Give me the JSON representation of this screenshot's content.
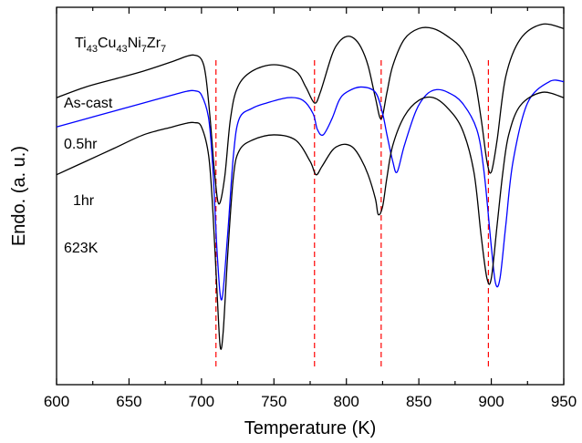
{
  "chart_data": {
    "type": "line",
    "xlabel": "Temperature (K)",
    "ylabel": "Endo. (a. u.)",
    "xlim": [
      600,
      950
    ],
    "xticks": [
      "600",
      "650",
      "700",
      "750",
      "800",
      "850",
      "900",
      "950"
    ],
    "ylim": [
      -3.4,
      3.7
    ],
    "grid": false,
    "composition": {
      "base": [
        "Ti",
        "Cu",
        "Ni",
        "Zr"
      ],
      "subscripts": [
        "43",
        "43",
        "7",
        "7"
      ]
    },
    "annotations": [
      "As-cast",
      "0.5hr",
      "1hr",
      "623K"
    ],
    "reference_lines_x": [
      710,
      778,
      824,
      898
    ],
    "series": [
      {
        "color": "#000000",
        "x": [
          600,
          620,
          640,
          660,
          680,
          690,
          695,
          700,
          703,
          706,
          709,
          712,
          716,
          720,
          725,
          735,
          750,
          765,
          772,
          778,
          782,
          790,
          795,
          800,
          805,
          810,
          815,
          820,
          824,
          828,
          832,
          840,
          850,
          860,
          870,
          880,
          888,
          893,
          897,
          900,
          904,
          910,
          920,
          935,
          950
        ],
        "y": [
          2.0,
          2.2,
          2.35,
          2.5,
          2.68,
          2.78,
          2.8,
          2.72,
          2.4,
          1.6,
          0.6,
          0.0,
          0.5,
          1.6,
          2.2,
          2.5,
          2.62,
          2.5,
          2.2,
          1.9,
          2.1,
          2.8,
          3.05,
          3.15,
          3.12,
          2.95,
          2.6,
          2.0,
          1.6,
          2.1,
          2.6,
          3.1,
          3.3,
          3.3,
          3.15,
          2.9,
          2.4,
          1.6,
          0.8,
          0.6,
          1.2,
          2.4,
          3.1,
          3.38,
          3.3
        ]
      },
      {
        "color": "#0000ff",
        "x": [
          600,
          620,
          640,
          660,
          680,
          690,
          695,
          700,
          705,
          708,
          711,
          714,
          718,
          722,
          726,
          735,
          745,
          760,
          770,
          777,
          780,
          784,
          790,
          795,
          800,
          810,
          820,
          825,
          828,
          832,
          835,
          840,
          848,
          855,
          862,
          870,
          880,
          890,
          895,
          900,
          903,
          906,
          910,
          915,
          925,
          940,
          950
        ],
        "y": [
          1.45,
          1.6,
          1.75,
          1.9,
          2.05,
          2.12,
          2.13,
          2.05,
          1.6,
          0.6,
          -1.0,
          -1.8,
          -0.6,
          0.9,
          1.6,
          1.8,
          1.9,
          2.0,
          1.95,
          1.7,
          1.4,
          1.3,
          1.6,
          1.95,
          2.1,
          2.2,
          2.1,
          1.7,
          1.3,
          0.8,
          0.6,
          1.1,
          1.75,
          2.05,
          2.15,
          2.1,
          1.9,
          1.4,
          0.6,
          -0.8,
          -1.5,
          -1.4,
          -0.4,
          0.8,
          1.9,
          2.3,
          2.3
        ]
      },
      {
        "color": "#000000",
        "x": [
          600,
          620,
          640,
          660,
          680,
          690,
          695,
          700,
          705,
          708,
          711,
          713,
          715,
          718,
          722,
          726,
          735,
          750,
          765,
          775,
          779,
          783,
          790,
          795,
          800,
          805,
          810,
          815,
          820,
          822,
          825,
          828,
          832,
          840,
          850,
          860,
          870,
          880,
          888,
          893,
          897,
          900,
          904,
          908,
          912,
          920,
          935,
          950
        ],
        "y": [
          0.55,
          0.8,
          1.05,
          1.3,
          1.45,
          1.52,
          1.53,
          1.45,
          0.9,
          -0.2,
          -1.8,
          -2.7,
          -2.4,
          -1.0,
          0.5,
          1.0,
          1.2,
          1.3,
          1.2,
          0.8,
          0.55,
          0.7,
          1.0,
          1.1,
          1.12,
          1.05,
          0.85,
          0.55,
          0.1,
          -0.2,
          -0.05,
          0.5,
          1.1,
          1.65,
          1.95,
          2.0,
          1.8,
          1.4,
          0.6,
          -0.6,
          -1.4,
          -1.4,
          -0.4,
          0.6,
          1.3,
          1.85,
          2.1,
          2.0
        ]
      }
    ]
  }
}
